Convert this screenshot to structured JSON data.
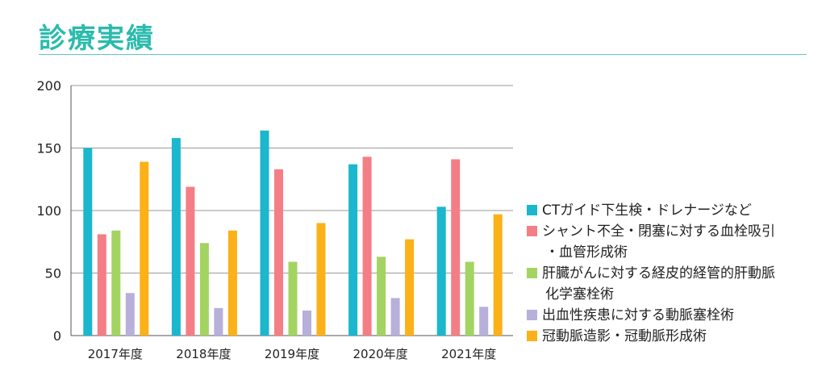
{
  "page": {
    "title": "診療実績"
  },
  "chart_data": {
    "type": "bar",
    "categories": [
      "2017年度",
      "2018年度",
      "2019年度",
      "2020年度",
      "2021年度"
    ],
    "ylim": [
      0,
      200
    ],
    "yticks": [
      0,
      50,
      100,
      150,
      200
    ],
    "grid": true,
    "legend_position": "right",
    "series": [
      {
        "name": "CTガイド下生検・ドレナージなど",
        "color": "#1bb7cd",
        "values": [
          150,
          158,
          164,
          137,
          103
        ]
      },
      {
        "name": "シャント不全・閉塞に対する血栓吸引\n・血管形成術",
        "color": "#f47e86",
        "values": [
          81,
          119,
          133,
          143,
          141
        ]
      },
      {
        "name": "肝臓がんに対する経皮的経管的肝動脈\n化学塞栓術",
        "color": "#a3d461",
        "values": [
          84,
          74,
          59,
          63,
          59
        ]
      },
      {
        "name": "出血性疾患に対する動脈塞栓術",
        "color": "#b6b0da",
        "values": [
          34,
          22,
          20,
          30,
          23
        ]
      },
      {
        "name": "冠動脈造影・冠動脈形成術",
        "color": "#fbb117",
        "values": [
          139,
          84,
          90,
          77,
          97
        ]
      }
    ]
  }
}
